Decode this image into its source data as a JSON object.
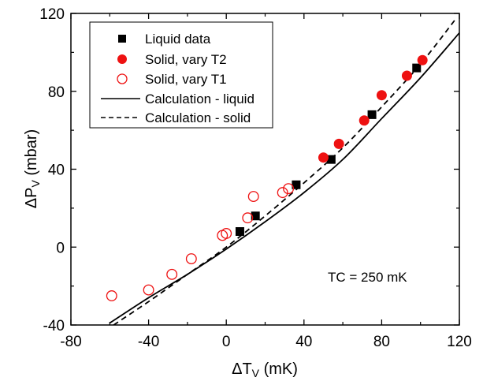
{
  "chart_data": {
    "type": "scatter",
    "title": "",
    "xlabel": {
      "main": "ΔT",
      "sub": "V",
      "unit": " (mK)"
    },
    "ylabel": {
      "main": "ΔP",
      "sub": "V",
      "unit": " (mbar)"
    },
    "xlim": [
      -80,
      120
    ],
    "ylim": [
      -40,
      120
    ],
    "x_ticks": [
      "-80",
      "-40",
      "0",
      "40",
      "80",
      "120"
    ],
    "y_ticks": [
      "-40",
      "0",
      "40",
      "80",
      "120"
    ],
    "grid": false,
    "legend_position": "top-left",
    "annotation": "TC = 250 mK",
    "series": [
      {
        "name": "Liquid data",
        "kind": "scatter",
        "marker": "square",
        "color": "#000000",
        "points": [
          [
            7,
            8
          ],
          [
            15,
            16
          ],
          [
            36,
            32
          ],
          [
            54,
            45
          ],
          [
            75,
            68
          ],
          [
            98,
            92
          ]
        ]
      },
      {
        "name": "Solid, vary T2",
        "kind": "scatter",
        "marker": "circle-filled",
        "color": "#ee1111",
        "points": [
          [
            50,
            46
          ],
          [
            58,
            53
          ],
          [
            71,
            65
          ],
          [
            80,
            78
          ],
          [
            93,
            88
          ],
          [
            101,
            96
          ]
        ]
      },
      {
        "name": "Solid, vary T1",
        "kind": "scatter",
        "marker": "circle-open",
        "color": "#ee1111",
        "points": [
          [
            -59,
            -25
          ],
          [
            -40,
            -22
          ],
          [
            -28,
            -14
          ],
          [
            -18,
            -6
          ],
          [
            -2,
            6
          ],
          [
            0,
            7
          ],
          [
            11,
            15
          ],
          [
            14,
            26
          ],
          [
            29,
            28
          ],
          [
            32,
            30
          ]
        ]
      },
      {
        "name": "Calculation - liquid",
        "kind": "line",
        "dash": "solid",
        "color": "#000000",
        "points": [
          [
            -60,
            -39
          ],
          [
            -40,
            -26
          ],
          [
            -20,
            -14
          ],
          [
            0,
            -1
          ],
          [
            20,
            13
          ],
          [
            40,
            28
          ],
          [
            60,
            45
          ],
          [
            80,
            66
          ],
          [
            100,
            87
          ],
          [
            120,
            110
          ]
        ]
      },
      {
        "name": "Calculation - solid",
        "kind": "line",
        "dash": "dashed",
        "color": "#000000",
        "points": [
          [
            -58,
            -40
          ],
          [
            -40,
            -28
          ],
          [
            -20,
            -14
          ],
          [
            0,
            0
          ],
          [
            20,
            16
          ],
          [
            40,
            33
          ],
          [
            60,
            51
          ],
          [
            80,
            72
          ],
          [
            100,
            94
          ],
          [
            118,
            117
          ]
        ]
      }
    ]
  }
}
